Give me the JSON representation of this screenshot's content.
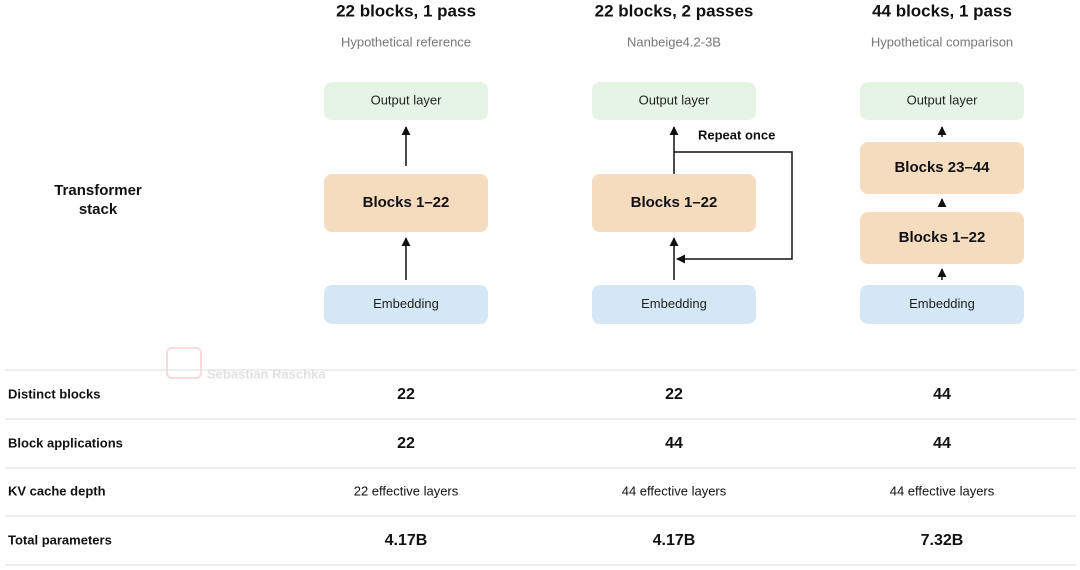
{
  "row_header": "Transformer stack",
  "columns": [
    {
      "title": "22 blocks, 1 pass",
      "subtitle": "Hypothetical reference",
      "output": "Output layer",
      "blocks": [
        "Blocks 1–22"
      ],
      "embedding": "Embedding"
    },
    {
      "title": "22 blocks, 2 passes",
      "subtitle": "Nanbeige4.2-3B",
      "output": "Output layer",
      "blocks": [
        "Blocks 1–22"
      ],
      "embedding": "Embedding",
      "annotation": "Repeat once"
    },
    {
      "title": "44 blocks, 1 pass",
      "subtitle": "Hypothetical comparison",
      "output": "Output layer",
      "blocks": [
        "Blocks 23–44",
        "Blocks 1–22"
      ],
      "embedding": "Embedding"
    }
  ],
  "watermark": "Sebastian Raschka",
  "table": {
    "rows": [
      [
        "Distinct blocks",
        22,
        22,
        44
      ],
      [
        "Block applications",
        22,
        44,
        44
      ],
      [
        "KV cache depth",
        "22 effective layers",
        "44 effective layers",
        "44 effective layers"
      ],
      [
        "Total parameters",
        "4.17B",
        "4.17B",
        "7.32B"
      ]
    ]
  }
}
